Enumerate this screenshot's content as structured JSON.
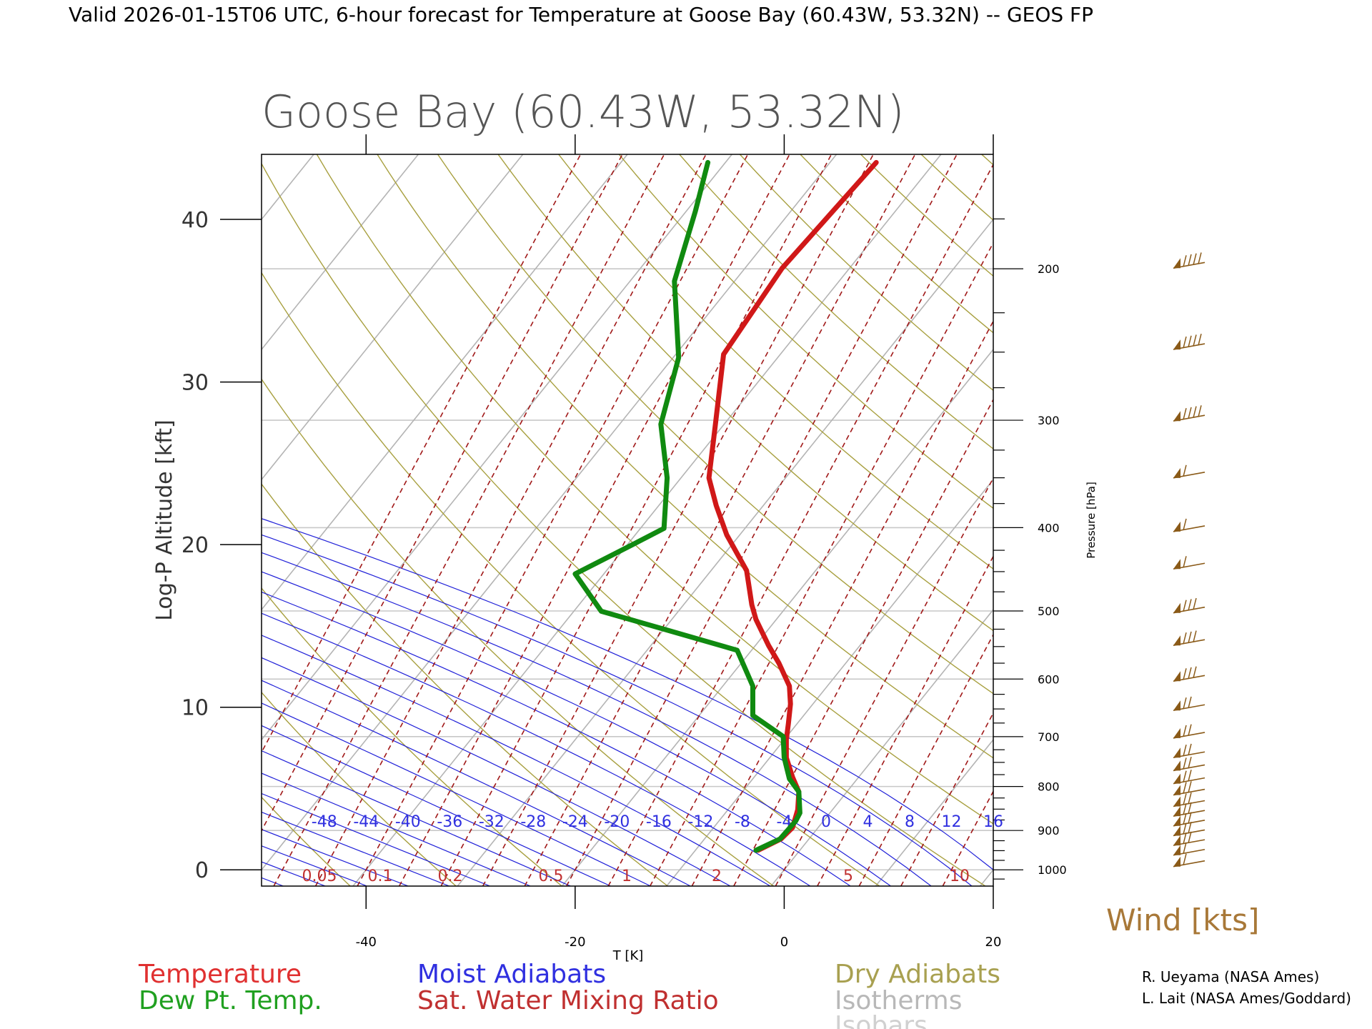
{
  "header": "Valid 2026-01-15T06 UTC, 6-hour forecast for Temperature at Goose Bay (60.43W, 53.32N) -- GEOS FP",
  "chart_data": {
    "type": "line",
    "title": "Goose Bay (60.43W, 53.32N)",
    "xlabel": "T [K]",
    "ylabel": "Log-P Altitude [kft]",
    "y2label": "Pressure [hPa]",
    "xlim": [
      -50,
      20
    ],
    "ylim": [
      -1,
      44
    ],
    "x_ticks": [
      -40,
      -20,
      0,
      20
    ],
    "y_ticks": [
      0,
      10,
      20,
      30,
      40
    ],
    "pressure_ticks": [
      {
        "hpa": 200,
        "label": "200"
      },
      {
        "hpa": 300,
        "label": "300"
      },
      {
        "hpa": 400,
        "label": "400"
      },
      {
        "hpa": 500,
        "label": "500"
      },
      {
        "hpa": 600,
        "label": "600"
      },
      {
        "hpa": 700,
        "label": "700"
      },
      {
        "hpa": 800,
        "label": "800"
      },
      {
        "hpa": 900,
        "label": "900"
      },
      {
        "hpa": 1000,
        "label": "1000"
      }
    ],
    "moist_adiabat_labels": [
      "-48",
      "-44",
      "-40",
      "-36",
      "-32",
      "-28",
      "-24",
      "-20",
      "-16",
      "-12",
      "-8",
      "-4",
      "0",
      "4",
      "8",
      "12",
      "16"
    ],
    "mixing_ratio_labels": [
      "0.05",
      "0.1",
      "0.2",
      "0.5",
      "1",
      "2",
      "5",
      "10"
    ],
    "series": [
      {
        "name": "Temperature",
        "color": "#d01818",
        "points": [
          [
            -2.5,
            1.2
          ],
          [
            -0.3,
            1.9
          ],
          [
            0.8,
            2.6
          ],
          [
            1.3,
            3.7
          ],
          [
            1.4,
            4.8
          ],
          [
            0.8,
            5.7
          ],
          [
            0.2,
            6.9
          ],
          [
            0.2,
            8.0
          ],
          [
            0.4,
            9.0
          ],
          [
            0.6,
            10.2
          ],
          [
            0.5,
            11.3
          ],
          [
            -0.5,
            12.7
          ],
          [
            -1.5,
            13.8
          ],
          [
            -2.7,
            15.4
          ],
          [
            -3.1,
            16.3
          ],
          [
            -3.6,
            18.4
          ],
          [
            -5.5,
            20.6
          ],
          [
            -6.5,
            22.4
          ],
          [
            -7.2,
            24.1
          ],
          [
            -6.6,
            27.3
          ],
          [
            -5.8,
            31.7
          ],
          [
            -0.2,
            37.0
          ],
          [
            8.8,
            43.5
          ]
        ]
      },
      {
        "name": "Dew Pt. Temp.",
        "color": "#108a10",
        "points": [
          [
            -2.7,
            1.2
          ],
          [
            -0.4,
            1.9
          ],
          [
            1.1,
            3.0
          ],
          [
            1.5,
            3.5
          ],
          [
            1.4,
            4.8
          ],
          [
            0.5,
            5.6
          ],
          [
            0.0,
            6.9
          ],
          [
            -0.1,
            8.2
          ],
          [
            -3.0,
            9.5
          ],
          [
            -3.0,
            11.3
          ],
          [
            -4.5,
            13.5
          ],
          [
            -11.5,
            14.8
          ],
          [
            -17.5,
            15.9
          ],
          [
            -20.0,
            18.2
          ],
          [
            -14.5,
            20.0
          ],
          [
            -11.5,
            21.0
          ],
          [
            -11.2,
            24.1
          ],
          [
            -11.8,
            27.4
          ],
          [
            -10.1,
            31.5
          ],
          [
            -10.5,
            36.2
          ],
          [
            -8.5,
            40.5
          ],
          [
            -7.3,
            43.5
          ]
        ]
      }
    ],
    "winds": [
      {
        "alt": 37.0,
        "barbs": 4
      },
      {
        "alt": 32.0,
        "barbs": 4
      },
      {
        "alt": 27.6,
        "barbs": 4
      },
      {
        "alt": 24.1,
        "barbs": 1
      },
      {
        "alt": 20.8,
        "barbs": 1
      },
      {
        "alt": 18.5,
        "barbs": 1
      },
      {
        "alt": 15.8,
        "barbs": 3
      },
      {
        "alt": 13.8,
        "barbs": 3
      },
      {
        "alt": 11.6,
        "barbs": 3
      },
      {
        "alt": 9.8,
        "barbs": 2
      },
      {
        "alt": 8.1,
        "barbs": 2
      },
      {
        "alt": 6.9,
        "barbs": 2
      },
      {
        "alt": 6.1,
        "barbs": 2
      },
      {
        "alt": 5.3,
        "barbs": 2
      },
      {
        "alt": 4.6,
        "barbs": 2
      },
      {
        "alt": 3.9,
        "barbs": 2
      },
      {
        "alt": 3.3,
        "barbs": 2
      },
      {
        "alt": 2.7,
        "barbs": 2
      },
      {
        "alt": 2.1,
        "barbs": 2
      },
      {
        "alt": 1.5,
        "barbs": 2
      },
      {
        "alt": 0.9,
        "barbs": 1
      },
      {
        "alt": 0.2,
        "barbs": 1
      }
    ],
    "wind_label": "Wind [kts]",
    "legend": [
      {
        "label": "Temperature",
        "color": "#e03030"
      },
      {
        "label": "Dew Pt. Temp.",
        "color": "#20a020"
      },
      {
        "label": "Moist Adiabats",
        "color": "#3030e0"
      },
      {
        "label": "Sat. Water Mixing Ratio",
        "color": "#c03030"
      },
      {
        "label": "Dry Adiabats",
        "color": "#a8a050"
      },
      {
        "label": "Isotherms",
        "color": "#b8b8b8"
      },
      {
        "label": "Isobars",
        "color": "#d0d0d0"
      }
    ],
    "grid": true
  },
  "credits": [
    "R. Ueyama (NASA Ames)",
    "L. Lait (NASA Ames/Goddard)"
  ]
}
